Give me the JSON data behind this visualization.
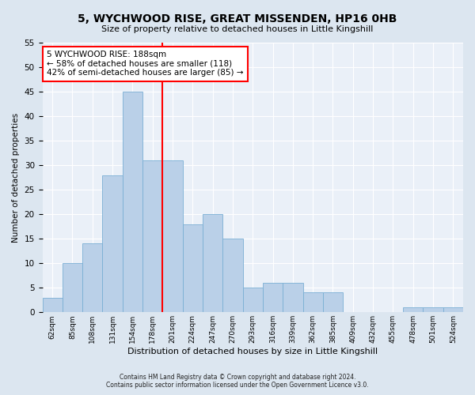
{
  "title": "5, WYCHWOOD RISE, GREAT MISSENDEN, HP16 0HB",
  "subtitle": "Size of property relative to detached houses in Little Kingshill",
  "xlabel": "Distribution of detached houses by size in Little Kingshill",
  "ylabel": "Number of detached properties",
  "footer_line1": "Contains HM Land Registry data © Crown copyright and database right 2024.",
  "footer_line2": "Contains public sector information licensed under the Open Government Licence v3.0.",
  "bins": [
    "62sqm",
    "85sqm",
    "108sqm",
    "131sqm",
    "154sqm",
    "178sqm",
    "201sqm",
    "224sqm",
    "247sqm",
    "270sqm",
    "293sqm",
    "316sqm",
    "339sqm",
    "362sqm",
    "385sqm",
    "409sqm",
    "432sqm",
    "455sqm",
    "478sqm",
    "501sqm",
    "524sqm"
  ],
  "values": [
    3,
    10,
    14,
    28,
    45,
    31,
    31,
    18,
    20,
    15,
    5,
    6,
    6,
    4,
    4,
    0,
    0,
    0,
    1,
    1,
    1
  ],
  "bar_color": "#bad0e8",
  "bar_edge_color": "#7aafd4",
  "highlight_bin_index": 5,
  "highlight_color": "red",
  "annotation_title": "5 WYCHWOOD RISE: 188sqm",
  "annotation_line1": "← 58% of detached houses are smaller (118)",
  "annotation_line2": "42% of semi-detached houses are larger (85) →",
  "annotation_box_color": "white",
  "annotation_box_edge": "red",
  "ylim": [
    0,
    55
  ],
  "yticks": [
    0,
    5,
    10,
    15,
    20,
    25,
    30,
    35,
    40,
    45,
    50,
    55
  ],
  "background_color": "#dce6f0",
  "plot_background": "#eaf0f8"
}
